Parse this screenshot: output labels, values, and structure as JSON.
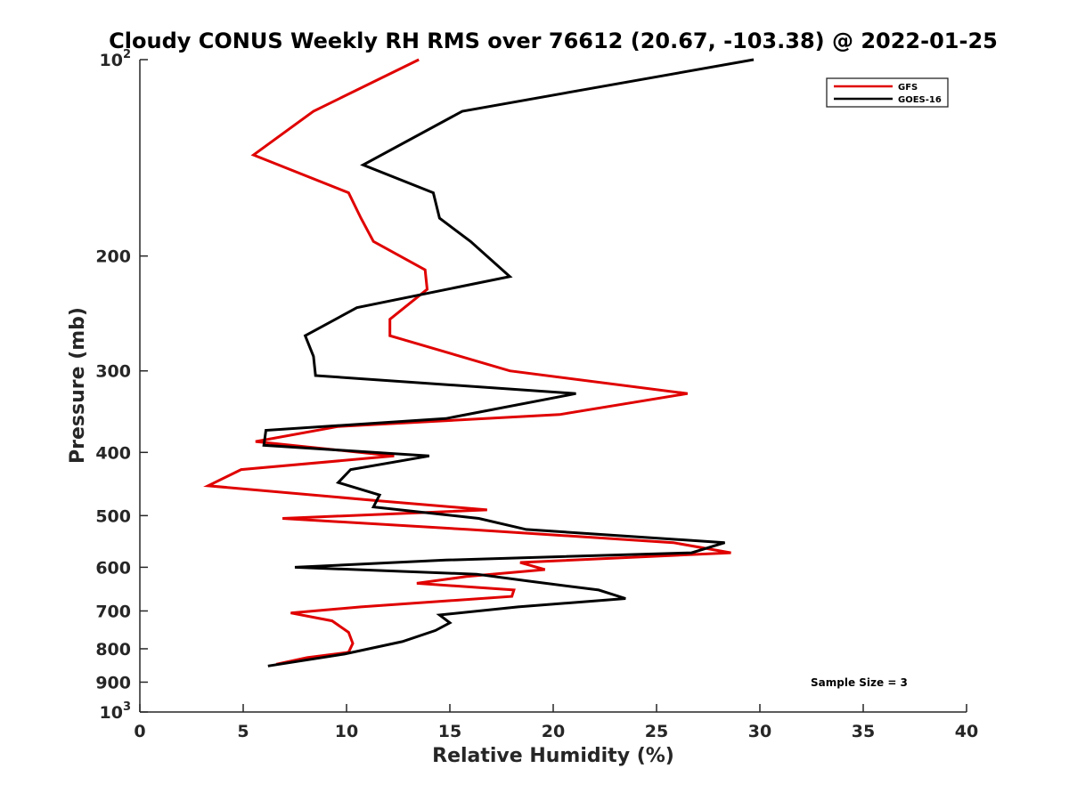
{
  "chart_data": {
    "type": "line",
    "title": "Cloudy CONUS Weekly RH RMS over 76612 (20.67, -103.38) @ 2022-01-25",
    "xlabel": "Relative Humidity (%)",
    "ylabel": "Pressure (mb)",
    "xlim": [
      0,
      40
    ],
    "ylim": [
      100,
      1000
    ],
    "yscale": "log",
    "yreversed": true,
    "grid": false,
    "legend_position": "top-right",
    "x_ticks": [
      {
        "value": 0,
        "label": "0"
      },
      {
        "value": 5,
        "label": "5"
      },
      {
        "value": 10,
        "label": "10"
      },
      {
        "value": 15,
        "label": "15"
      },
      {
        "value": 20,
        "label": "20"
      },
      {
        "value": 25,
        "label": "25"
      },
      {
        "value": 30,
        "label": "30"
      },
      {
        "value": 35,
        "label": "35"
      },
      {
        "value": 40,
        "label": "40"
      }
    ],
    "y_ticks": [
      {
        "value": 100,
        "label": "10",
        "sup": "2"
      },
      {
        "value": 200,
        "label": "200"
      },
      {
        "value": 300,
        "label": "300"
      },
      {
        "value": 400,
        "label": "400"
      },
      {
        "value": 500,
        "label": "500"
      },
      {
        "value": 600,
        "label": "600"
      },
      {
        "value": 700,
        "label": "700"
      },
      {
        "value": 800,
        "label": "800"
      },
      {
        "value": 900,
        "label": "900"
      },
      {
        "value": 1000,
        "label": "10",
        "sup": "3"
      }
    ],
    "annotation": "Sample Size = 3",
    "series": [
      {
        "name": "GFS",
        "color": "#e00000",
        "x": [
          13.5,
          8.4,
          5.5,
          10.1,
          10.7,
          11.3,
          13.8,
          13.9,
          12.1,
          12.1,
          17.9,
          26.5,
          20.3,
          9.6,
          5.6,
          12.3,
          4.9,
          3.3,
          11.7,
          16.8,
          6.9,
          15.9,
          25.8,
          28.6,
          18.4,
          19.6,
          15.8,
          13.4,
          18.1,
          18.0,
          10.7,
          7.3,
          9.3,
          10.1,
          10.3,
          10.1,
          8.1,
          6.6
        ],
        "y": [
          100,
          120,
          140,
          160,
          175,
          190,
          210,
          225,
          250,
          265,
          300,
          325,
          350,
          365,
          385,
          405,
          425,
          450,
          475,
          490,
          505,
          525,
          550,
          570,
          590,
          605,
          620,
          635,
          650,
          665,
          690,
          705,
          725,
          755,
          785,
          810,
          825,
          845
        ]
      },
      {
        "name": "GOES-16",
        "color": "#000000",
        "x": [
          29.7,
          15.6,
          10.8,
          14.2,
          14.5,
          16.0,
          17.9,
          10.5,
          8.0,
          8.4,
          8.5,
          21.1,
          14.8,
          6.1,
          6.0,
          14.0,
          10.2,
          9.6,
          11.6,
          11.3,
          16.4,
          18.7,
          28.3,
          26.7,
          14.8,
          7.5,
          16.3,
          18.8,
          22.2,
          23.5,
          18.3,
          14.5,
          15.0,
          14.3,
          12.7,
          9.9,
          6.2
        ],
        "y": [
          100,
          120,
          145,
          160,
          175,
          190,
          215,
          240,
          265,
          285,
          305,
          325,
          355,
          370,
          390,
          405,
          425,
          445,
          465,
          485,
          505,
          525,
          550,
          570,
          585,
          600,
          615,
          630,
          650,
          670,
          690,
          710,
          730,
          750,
          780,
          815,
          850
        ]
      }
    ]
  }
}
